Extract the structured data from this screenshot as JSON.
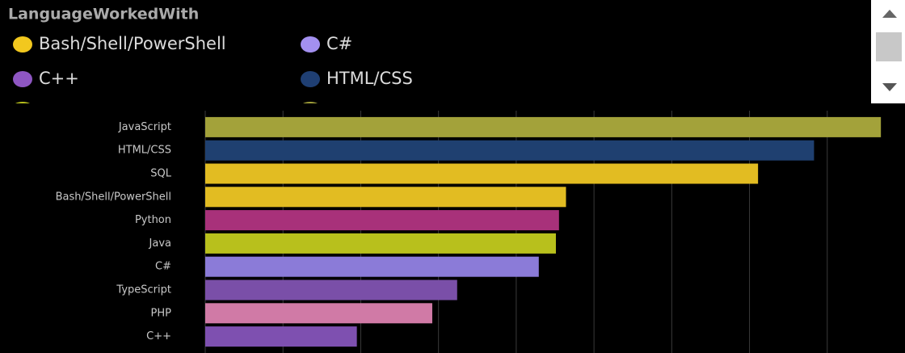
{
  "chart_data": {
    "type": "barh",
    "legend": {
      "title": "LanguageWorkedWith",
      "items": [
        {
          "name": "Bash/Shell/PowerShell",
          "color": "#f2c81e"
        },
        {
          "name": "C#",
          "color": "#a390f0"
        },
        {
          "name": "C++",
          "color": "#8e56c2"
        },
        {
          "name": "HTML/CSS",
          "color": "#1f3f73"
        }
      ]
    },
    "categories": [
      "JavaScript",
      "HTML/CSS",
      "SQL",
      "Bash/Shell/PowerShell",
      "Python",
      "Java",
      "C#",
      "TypeScript",
      "PHP",
      "C++"
    ],
    "values": [
      8.69,
      7.83,
      7.11,
      4.64,
      4.55,
      4.51,
      4.29,
      3.24,
      2.92,
      1.95
    ],
    "colors": [
      "#a3a23a",
      "#1f4070",
      "#e2bc22",
      "#e2bc22",
      "#a8317a",
      "#b8c01c",
      "#8b7bd8",
      "#7a4fa8",
      "#d07aa6",
      "#7e50b0"
    ],
    "xlim": [
      0,
      9
    ],
    "xticks": [
      0,
      1,
      2,
      3,
      4,
      5,
      6,
      7,
      8
    ],
    "grid": true
  }
}
